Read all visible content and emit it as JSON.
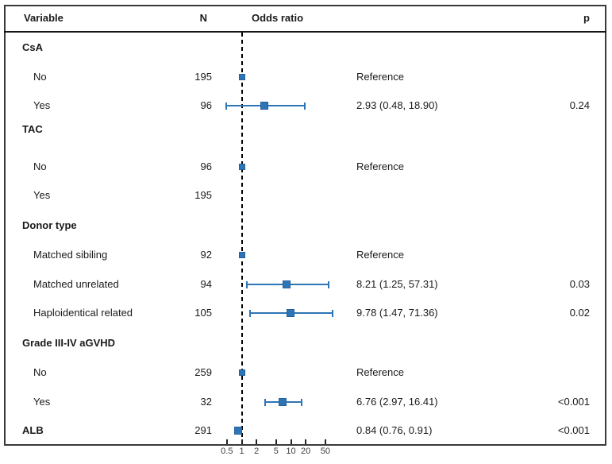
{
  "header": {
    "variable": "Variable",
    "n": "N",
    "odds_ratio": "Odds ratio",
    "p": "p"
  },
  "colors": {
    "marker": "#2E75B6",
    "marker_edge": "#24619C",
    "axis": "#222222",
    "text": "#1A1A1A"
  },
  "chart_data": {
    "type": "scatter",
    "subtype": "forest-plot",
    "title": "Odds ratio",
    "xlabel": "",
    "ylabel": "",
    "x_scale": "log",
    "x_ticks": [
      0.5,
      1,
      2,
      5,
      10,
      20,
      50
    ],
    "x_tick_labels": [
      "0.5",
      "1",
      "2",
      "5",
      "10",
      "20",
      "50"
    ],
    "xlim": [
      0.35,
      90
    ],
    "reference_line_x": 1,
    "grid": false,
    "legend": "none",
    "columns": [
      "Variable",
      "N",
      "Odds ratio",
      "p"
    ],
    "rows": [
      {
        "label": "CsA",
        "group": true
      },
      {
        "label": "No",
        "n": "195",
        "or_text": "Reference",
        "est": 1,
        "reference": true
      },
      {
        "label": "Yes",
        "n": "96",
        "or_text": "2.93 (0.48, 18.90)",
        "p": "0.24",
        "est": 2.93,
        "lo": 0.48,
        "hi": 18.9
      },
      {
        "label": "TAC",
        "group": true
      },
      {
        "label": "No",
        "n": "96",
        "or_text": "Reference",
        "est": 1,
        "reference": true
      },
      {
        "label": "Yes",
        "n": "195"
      },
      {
        "label": "Donor type",
        "group": true
      },
      {
        "label": "Matched sibiling",
        "n": "92",
        "or_text": "Reference",
        "est": 1,
        "reference": true
      },
      {
        "label": "Matched unrelated",
        "n": "94",
        "or_text": "8.21 (1.25, 57.31)",
        "p": "0.03",
        "est": 8.21,
        "lo": 1.25,
        "hi": 57.31
      },
      {
        "label": "Haploidentical related",
        "n": "105",
        "or_text": "9.78 (1.47, 71.36)",
        "p": "0.02",
        "est": 9.78,
        "lo": 1.47,
        "hi": 71.36
      },
      {
        "label": "Grade III-IV aGVHD",
        "group": true
      },
      {
        "label": "No",
        "n": "259",
        "or_text": "Reference",
        "est": 1,
        "reference": true
      },
      {
        "label": "Yes",
        "n": "32",
        "or_text": "6.76 (2.97, 16.41)",
        "p": "<0.001",
        "est": 6.76,
        "lo": 2.97,
        "hi": 16.41
      },
      {
        "label": "ALB",
        "group": true,
        "n": "291",
        "or_text": "0.84 (0.76, 0.91)",
        "p": "<0.001",
        "est": 0.84,
        "lo": 0.76,
        "hi": 0.91
      }
    ]
  }
}
